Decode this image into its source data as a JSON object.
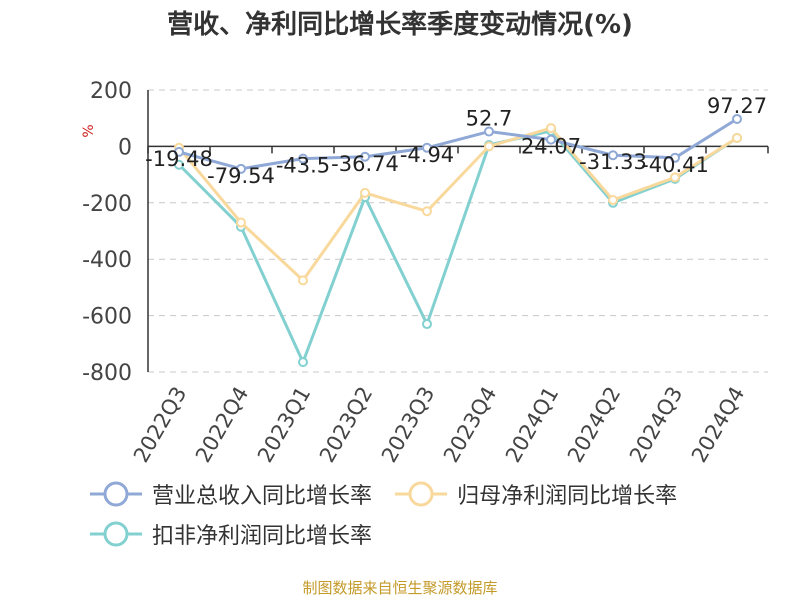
{
  "title": "营收、净利同比增长率季度变动情况(%)",
  "source_note": "制图数据来自恒生聚源数据库",
  "chart_data": {
    "type": "line",
    "title": "营收、净利同比增长率季度变动情况(%)",
    "ylabel": "%",
    "ylim": [
      -800,
      200
    ],
    "yticks": [
      200,
      0,
      -200,
      -400,
      -600,
      -800
    ],
    "grid": true,
    "legend_position": "bottom-left",
    "categories": [
      "2022Q3",
      "2022Q4",
      "2023Q1",
      "2023Q2",
      "2023Q3",
      "2023Q4",
      "2024Q1",
      "2024Q2",
      "2024Q3",
      "2024Q4"
    ],
    "series": [
      {
        "name": "营业总收入同比增长率",
        "color": "#8fa8d6",
        "values": [
          -19.48,
          -79.54,
          -43.5,
          -36.74,
          -4.94,
          52.7,
          24.07,
          -31.33,
          -40.41,
          97.27
        ],
        "labels": [
          "-19.48",
          "-79.54",
          "-43.5",
          "-36.74",
          "-4.94",
          "52.7",
          "24.07",
          "-31.33",
          "-40.41",
          "97.27"
        ]
      },
      {
        "name": "归母净利润同比增长率",
        "color": "#f9d89c",
        "values": [
          -5,
          -270,
          -475,
          -165,
          -230,
          0,
          65,
          -190,
          -110,
          30
        ]
      },
      {
        "name": "扣非净利润同比增长率",
        "color": "#82d0d0",
        "values": [
          -65,
          -285,
          -765,
          -180,
          -630,
          5,
          55,
          -200,
          -115,
          30
        ]
      }
    ]
  }
}
